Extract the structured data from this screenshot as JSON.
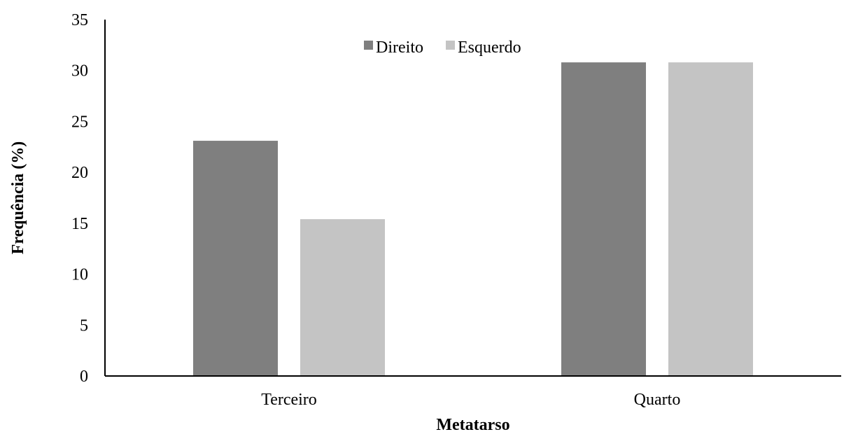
{
  "chart_data": {
    "type": "bar",
    "title": "",
    "xlabel": "Metatarso",
    "ylabel": "Frequência (%)",
    "categories": [
      "Terceiro",
      "Quarto"
    ],
    "series": [
      {
        "name": "Direito",
        "values": [
          23.1,
          30.8
        ],
        "color": "#7f7f7f"
      },
      {
        "name": "Esquerdo",
        "values": [
          15.4,
          30.8
        ],
        "color": "#c4c4c4"
      }
    ],
    "ylim": [
      0,
      35
    ],
    "yticks": [
      "0",
      "5",
      "10",
      "15",
      "20",
      "25",
      "30",
      "35"
    ],
    "grid": false,
    "legend_position": "top-center"
  }
}
